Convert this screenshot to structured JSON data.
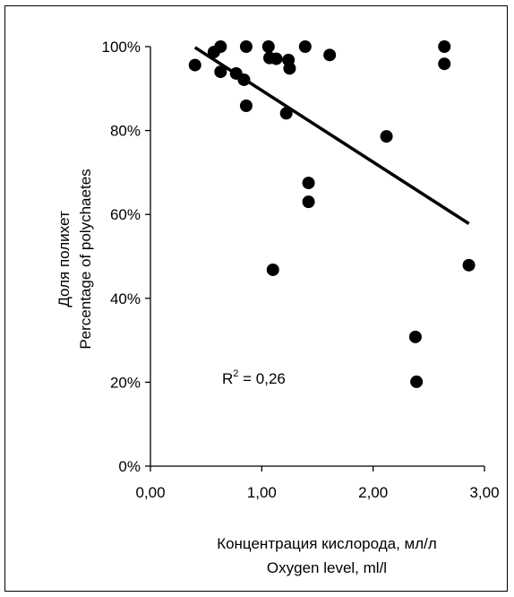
{
  "chart_data": {
    "type": "scatter",
    "xlabel": [
      "Концентрация кислорода, мл/л",
      "Oxygen level, ml/l"
    ],
    "ylabel": [
      "Доля полихет",
      "Percentage of polychaetes"
    ],
    "x_ticks": [
      "0,00",
      "1,00",
      "2,00",
      "3,00"
    ],
    "y_ticks": [
      "0%",
      "20%",
      "40%",
      "60%",
      "80%",
      "100%"
    ],
    "xlim": [
      0,
      3
    ],
    "ylim": [
      0,
      100
    ],
    "grid": false,
    "legend": "none",
    "marker_color": "#000000",
    "points": [
      {
        "x": 0.4,
        "y": 95.6
      },
      {
        "x": 0.57,
        "y": 98.7
      },
      {
        "x": 0.63,
        "y": 100
      },
      {
        "x": 0.63,
        "y": 94.0
      },
      {
        "x": 0.77,
        "y": 93.6
      },
      {
        "x": 0.84,
        "y": 92.1
      },
      {
        "x": 0.86,
        "y": 100
      },
      {
        "x": 0.86,
        "y": 85.9
      },
      {
        "x": 1.06,
        "y": 100
      },
      {
        "x": 1.07,
        "y": 97.3
      },
      {
        "x": 1.1,
        "y": 46.8
      },
      {
        "x": 1.13,
        "y": 97.1
      },
      {
        "x": 1.22,
        "y": 84.1
      },
      {
        "x": 1.24,
        "y": 96.8
      },
      {
        "x": 1.25,
        "y": 94.8
      },
      {
        "x": 1.39,
        "y": 100
      },
      {
        "x": 1.42,
        "y": 67.5
      },
      {
        "x": 1.42,
        "y": 63.0
      },
      {
        "x": 1.61,
        "y": 98.0
      },
      {
        "x": 2.12,
        "y": 78.6
      },
      {
        "x": 2.38,
        "y": 30.8
      },
      {
        "x": 2.39,
        "y": 20.1
      },
      {
        "x": 2.64,
        "y": 100
      },
      {
        "x": 2.64,
        "y": 95.9
      },
      {
        "x": 2.86,
        "y": 47.9
      }
    ],
    "trendline": {
      "type": "linear",
      "x": [
        0.4,
        2.86
      ],
      "y": [
        99.8,
        57.8
      ],
      "color": "#000000"
    },
    "annotation": {
      "base": "R",
      "superscript": "2",
      "rest": " = 0,26"
    }
  }
}
